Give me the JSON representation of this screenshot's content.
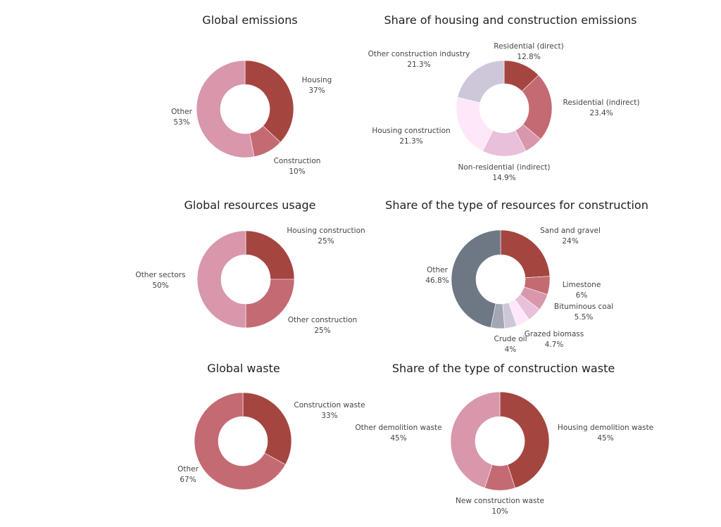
{
  "chart_data": [
    {
      "type": "pie",
      "title": "Global emissions",
      "labels": [
        "Housing",
        "Construction",
        "Other"
      ],
      "values": [
        37,
        10,
        53
      ],
      "value_labels": [
        "37%",
        "10%",
        "53%"
      ],
      "colors": [
        "#a54540",
        "#c46a73",
        "#d897ab"
      ]
    },
    {
      "type": "pie",
      "title": "Share of housing and construction emissions",
      "labels": [
        "Residential (direct)",
        "Residential (indirect)",
        "Non-residential (indirect)",
        "Housing construction",
        "Other construction industry"
      ],
      "values": [
        12.8,
        23.4,
        14.9,
        21.3,
        21.3
      ],
      "value_labels": [
        "12.8%",
        "23.4%",
        "14.9%",
        "21.3%",
        "21.3%"
      ],
      "colors": [
        "#a54540",
        "#c46a73",
        "#e8c0d9",
        "#fde7f8",
        "#cdc7d9"
      ],
      "extra_slices": [
        {
          "after": 1,
          "value": 6.3,
          "color": "#d897ab"
        }
      ]
    },
    {
      "type": "pie",
      "title": "Global resources usage",
      "labels": [
        "Housing construction",
        "Other construction",
        "Other sectors"
      ],
      "values": [
        25,
        25,
        50
      ],
      "value_labels": [
        "25%",
        "25%",
        "50%"
      ],
      "colors": [
        "#a54540",
        "#c46a73",
        "#d897ab"
      ]
    },
    {
      "type": "pie",
      "title": "Share of the type of resources for construction",
      "labels": [
        "Sand and gravel",
        "Limestone",
        "Bituminous coal",
        "Grazed biomass",
        "Crude oil",
        "Other"
      ],
      "values": [
        24,
        6,
        5.5,
        4.7,
        4,
        46.8
      ],
      "value_labels": [
        "24%",
        "6%",
        "5.5%",
        "4.7%",
        "4%",
        "46.8%"
      ],
      "colors": [
        "#a54540",
        "#c46a73",
        "#d897ab",
        "#e8c0d9",
        "#cdc7d9",
        "#6e7885"
      ],
      "extra_slices": [
        {
          "after": 3,
          "value": 4.5,
          "color": "#fde7f8"
        },
        {
          "after": 4,
          "value": 4.5,
          "color": "#a3a7b3"
        }
      ]
    },
    {
      "type": "pie",
      "title": "Global waste",
      "labels": [
        "Construction waste",
        "Other"
      ],
      "values": [
        33,
        67
      ],
      "value_labels": [
        "33%",
        "67%"
      ],
      "colors": [
        "#a54540",
        "#c46a73"
      ]
    },
    {
      "type": "pie",
      "title": "Share of the type of construction waste",
      "labels": [
        "Housing demolition waste",
        "New construction waste",
        "Other demolition waste"
      ],
      "values": [
        45,
        10,
        45
      ],
      "value_labels": [
        "45%",
        "10%",
        "45%"
      ],
      "colors": [
        "#a54540",
        "#c46a73",
        "#d897ab"
      ]
    }
  ]
}
